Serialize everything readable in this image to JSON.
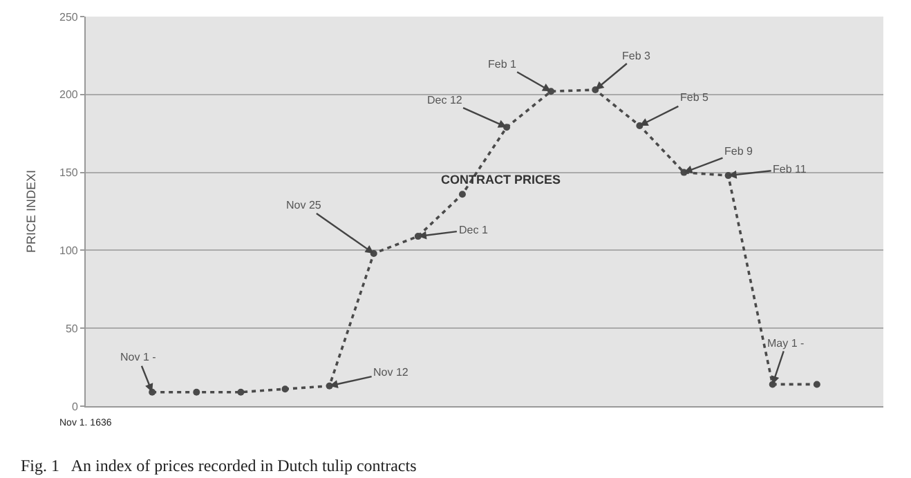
{
  "chart_data": {
    "type": "line",
    "ylabel": "PRICE INDEXI",
    "categories": [
      null,
      null,
      null,
      null,
      null,
      null,
      null,
      null,
      null,
      null,
      null,
      null,
      null,
      null,
      null,
      null
    ],
    "series": [
      {
        "color": "#4a4a4a",
        "values": [
          9,
          9,
          9,
          11,
          13,
          98,
          109,
          136,
          179,
          202,
          203,
          180,
          150,
          148,
          14,
          14
        ]
      }
    ],
    "ylim": [
      0,
      250
    ],
    "yticks": [
      0,
      50,
      100,
      150,
      200,
      250
    ],
    "grid": "y",
    "marker": "circle",
    "line_style": "dotted",
    "annotations": [
      "Nov 1 -",
      "Nov 12",
      "Nov 25",
      "Dec 1",
      "Dec 12",
      "Feb 1",
      "Feb 3",
      "Feb 5",
      "Feb 9",
      "Feb 11",
      "May 1 -",
      "CONTRACT PRICES",
      "Nov 1. 1636",
      "Fig. 1   An index of prices recorded in Dutch tulip contracts"
    ]
  }
}
